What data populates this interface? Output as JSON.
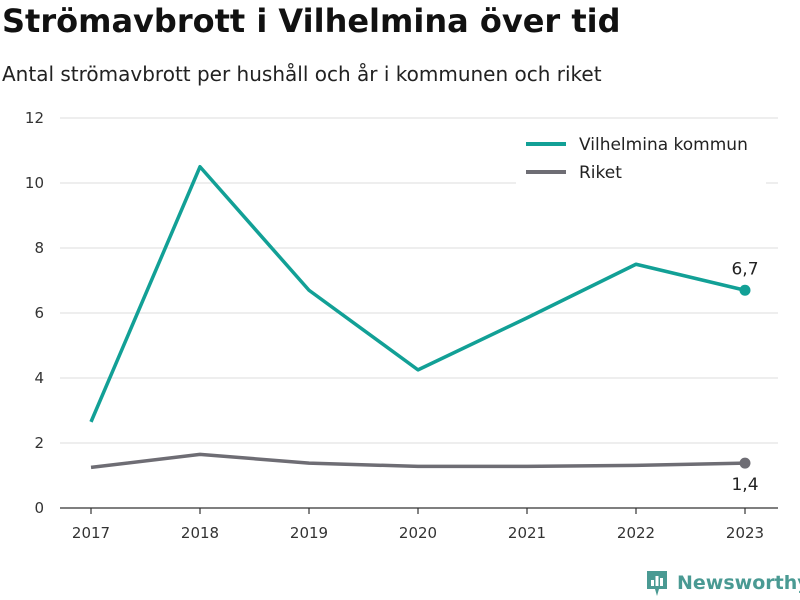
{
  "header": {
    "title": "Strömavbrott i Vilhelmina över tid",
    "subtitle": "Antal strömavbrott per hushåll och år i kommunen och riket"
  },
  "brand": {
    "name": "Newsworthy",
    "icon": "bar-chart-icon",
    "color": "#4a9a93"
  },
  "chart_data": {
    "type": "line",
    "x": [
      "2017",
      "2018",
      "2019",
      "2020",
      "2021",
      "2022",
      "2023"
    ],
    "ylim": [
      0,
      12
    ],
    "yticks": [
      0,
      2,
      4,
      6,
      8,
      10,
      12
    ],
    "grid": true,
    "legend_position": "top-right",
    "series": [
      {
        "name": "Vilhelmina kommun",
        "color": "#12a096",
        "values": [
          2.65,
          10.5,
          6.7,
          4.25,
          5.85,
          7.5,
          6.7
        ],
        "end_label": "6,7"
      },
      {
        "name": "Riket",
        "color": "#6e6d74",
        "values": [
          1.25,
          1.65,
          1.38,
          1.28,
          1.28,
          1.31,
          1.38
        ],
        "end_label": "1,4"
      }
    ]
  }
}
